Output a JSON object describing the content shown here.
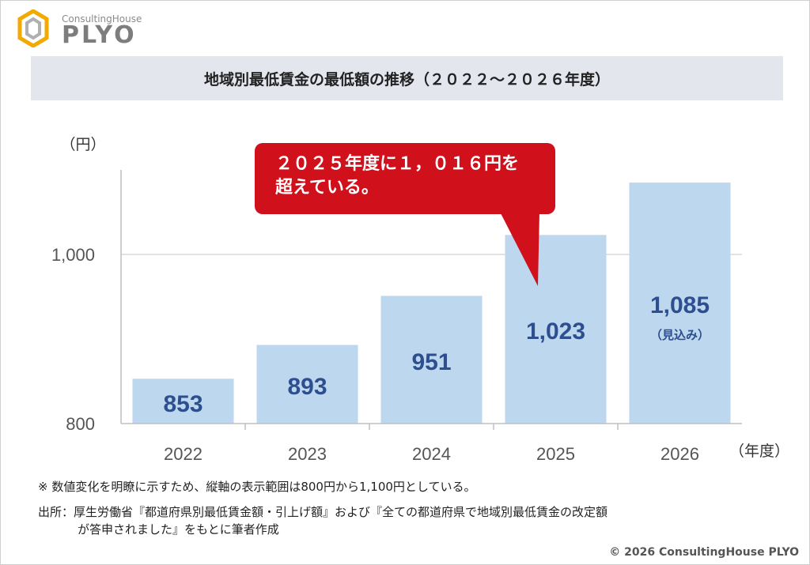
{
  "brand": {
    "small_text": "ConsultingHouse",
    "name": "PLYO",
    "color": "#f2a900"
  },
  "title": "地域別最低賃金の最低額の推移（２０２２～２０２６年度）",
  "callout": {
    "line1": "２０２５年度に１，０１６円を",
    "line2": "超えている。",
    "color": "#d0101b"
  },
  "chart_data": {
    "type": "bar",
    "categories": [
      "2022",
      "2023",
      "2024",
      "2025",
      "2026"
    ],
    "values": [
      853,
      893,
      951,
      1023,
      1085
    ],
    "value_labels": [
      "853",
      "893",
      "951",
      "1,023",
      "1,085"
    ],
    "sub_labels": [
      "",
      "",
      "",
      "",
      "（見込み）"
    ],
    "ylim": [
      800,
      1100
    ],
    "yticks": [
      {
        "value": 800,
        "label": "800"
      },
      {
        "value": 1000,
        "label": "1,000"
      }
    ],
    "ylabel": "（円）",
    "xlabel": "（年度）",
    "bar_color": "#bdd7ee",
    "label_color": "#2e4f8f",
    "grid": true
  },
  "notes": {
    "note1": "※ 数値変化を明瞭に示すため、縦軸の表示範囲は800円から1,100円としている。",
    "source_line1": "出所：厚生労働省『都道府県別最低賃金額・引上げ額』および『全ての都道府県で地域別最低賃金の改定額",
    "source_line2": "が答申されました』をもとに筆者作成"
  },
  "copyright": "© 2026 ConsultingHouse PLYO"
}
